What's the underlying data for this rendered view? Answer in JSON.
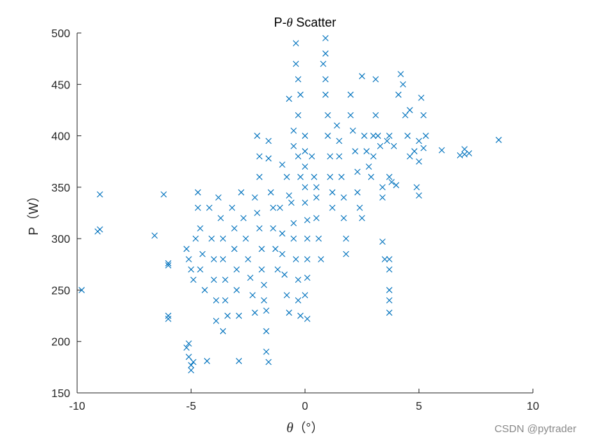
{
  "chart_data": {
    "type": "scatter",
    "title_prefix": "P-",
    "title_symbol": "θ",
    "title_suffix": " Scatter",
    "xlabel_symbol": "θ",
    "xlabel_unit": "（°）",
    "ylabel": "P（W）",
    "xlim": [
      -10,
      10
    ],
    "ylim": [
      150,
      500
    ],
    "xticks": [
      "-10",
      "-5",
      "0",
      "5",
      "10"
    ],
    "yticks": [
      "150",
      "200",
      "250",
      "300",
      "350",
      "400",
      "450",
      "500"
    ],
    "grid": false,
    "marker": "x",
    "series_color": "#0072BD",
    "points": [
      [
        -9.8,
        250
      ],
      [
        -9.0,
        343
      ],
      [
        -9.0,
        309
      ],
      [
        -9.1,
        307
      ],
      [
        -6.6,
        303
      ],
      [
        -6.2,
        343
      ],
      [
        -6.0,
        276
      ],
      [
        -6.0,
        274
      ],
      [
        -6.0,
        225
      ],
      [
        -6.0,
        222
      ],
      [
        -5.2,
        194
      ],
      [
        -5.1,
        185
      ],
      [
        -5.0,
        177
      ],
      [
        -5.0,
        172
      ],
      [
        -5.1,
        198
      ],
      [
        -4.9,
        180
      ],
      [
        -5.2,
        290
      ],
      [
        -5.1,
        280
      ],
      [
        -5.0,
        270
      ],
      [
        -4.9,
        260
      ],
      [
        -4.8,
        300
      ],
      [
        -4.7,
        345
      ],
      [
        -4.7,
        330
      ],
      [
        -4.6,
        310
      ],
      [
        -4.5,
        285
      ],
      [
        -4.6,
        270
      ],
      [
        -4.4,
        250
      ],
      [
        -4.3,
        181
      ],
      [
        -4.2,
        330
      ],
      [
        -4.1,
        300
      ],
      [
        -4.0,
        280
      ],
      [
        -4.0,
        260
      ],
      [
        -3.9,
        240
      ],
      [
        -3.9,
        220
      ],
      [
        -3.8,
        340
      ],
      [
        -3.7,
        320
      ],
      [
        -3.6,
        300
      ],
      [
        -3.6,
        280
      ],
      [
        -3.5,
        260
      ],
      [
        -3.5,
        240
      ],
      [
        -3.4,
        225
      ],
      [
        -3.6,
        210
      ],
      [
        -3.2,
        330
      ],
      [
        -3.1,
        310
      ],
      [
        -3.1,
        290
      ],
      [
        -3.0,
        270
      ],
      [
        -3.0,
        250
      ],
      [
        -2.9,
        225
      ],
      [
        -2.9,
        181
      ],
      [
        -2.8,
        345
      ],
      [
        -2.7,
        320
      ],
      [
        -2.6,
        300
      ],
      [
        -2.5,
        280
      ],
      [
        -2.4,
        262
      ],
      [
        -2.3,
        245
      ],
      [
        -2.2,
        228
      ],
      [
        -2.2,
        340
      ],
      [
        -2.1,
        325
      ],
      [
        -2.0,
        310
      ],
      [
        -1.9,
        290
      ],
      [
        -1.9,
        270
      ],
      [
        -1.8,
        255
      ],
      [
        -1.8,
        240
      ],
      [
        -1.7,
        230
      ],
      [
        -1.7,
        210
      ],
      [
        -1.7,
        190
      ],
      [
        -1.6,
        180
      ],
      [
        -2.1,
        400
      ],
      [
        -2.0,
        380
      ],
      [
        -2.0,
        360
      ],
      [
        -1.6,
        395
      ],
      [
        -1.6,
        378
      ],
      [
        -1.5,
        345
      ],
      [
        -1.4,
        330
      ],
      [
        -1.4,
        310
      ],
      [
        -1.3,
        290
      ],
      [
        -1.2,
        270
      ],
      [
        -1.1,
        330
      ],
      [
        -1.0,
        305
      ],
      [
        -1.0,
        285
      ],
      [
        -0.9,
        265
      ],
      [
        -0.8,
        245
      ],
      [
        -0.7,
        228
      ],
      [
        -0.7,
        342
      ],
      [
        -0.6,
        335
      ],
      [
        -0.5,
        315
      ],
      [
        -0.5,
        300
      ],
      [
        -0.4,
        280
      ],
      [
        -0.3,
        260
      ],
      [
        -0.3,
        240
      ],
      [
        -0.2,
        225
      ],
      [
        -1.0,
        372
      ],
      [
        -0.8,
        360
      ],
      [
        -0.5,
        405
      ],
      [
        -0.5,
        390
      ],
      [
        -0.7,
        436
      ],
      [
        -0.3,
        420
      ],
      [
        -0.4,
        490
      ],
      [
        -0.4,
        470
      ],
      [
        -0.3,
        455
      ],
      [
        -0.2,
        440
      ],
      [
        -0.3,
        380
      ],
      [
        -0.2,
        360
      ],
      [
        0.0,
        400
      ],
      [
        0.0,
        385
      ],
      [
        0.0,
        370
      ],
      [
        0.0,
        350
      ],
      [
        0.0,
        335
      ],
      [
        0.1,
        318
      ],
      [
        0.1,
        300
      ],
      [
        0.1,
        280
      ],
      [
        0.1,
        262
      ],
      [
        0.0,
        245
      ],
      [
        0.1,
        222
      ],
      [
        0.3,
        380
      ],
      [
        0.4,
        360
      ],
      [
        0.5,
        340
      ],
      [
        0.5,
        320
      ],
      [
        0.6,
        300
      ],
      [
        0.7,
        280
      ],
      [
        0.5,
        350
      ],
      [
        0.8,
        470
      ],
      [
        0.9,
        455
      ],
      [
        0.9,
        440
      ],
      [
        1.0,
        420
      ],
      [
        1.0,
        400
      ],
      [
        1.1,
        380
      ],
      [
        1.1,
        360
      ],
      [
        1.2,
        345
      ],
      [
        0.9,
        495
      ],
      [
        0.9,
        480
      ],
      [
        1.2,
        330
      ],
      [
        1.4,
        410
      ],
      [
        1.5,
        395
      ],
      [
        1.5,
        380
      ],
      [
        1.6,
        360
      ],
      [
        1.7,
        340
      ],
      [
        1.7,
        320
      ],
      [
        1.8,
        300
      ],
      [
        1.8,
        285
      ],
      [
        2.0,
        420
      ],
      [
        2.1,
        405
      ],
      [
        2.2,
        385
      ],
      [
        2.3,
        365
      ],
      [
        2.3,
        345
      ],
      [
        2.4,
        330
      ],
      [
        2.5,
        320
      ],
      [
        2.0,
        440
      ],
      [
        2.5,
        458
      ],
      [
        2.6,
        400
      ],
      [
        2.7,
        385
      ],
      [
        2.8,
        370
      ],
      [
        2.9,
        360
      ],
      [
        3.0,
        380
      ],
      [
        3.0,
        400
      ],
      [
        3.1,
        420
      ],
      [
        3.1,
        455
      ],
      [
        3.2,
        400
      ],
      [
        3.3,
        390
      ],
      [
        3.4,
        350
      ],
      [
        3.4,
        340
      ],
      [
        3.4,
        297
      ],
      [
        3.5,
        280
      ],
      [
        3.6,
        395
      ],
      [
        3.7,
        400
      ],
      [
        3.7,
        360
      ],
      [
        3.8,
        355
      ],
      [
        3.7,
        280
      ],
      [
        3.7,
        270
      ],
      [
        3.7,
        250
      ],
      [
        3.7,
        240
      ],
      [
        3.7,
        228
      ],
      [
        3.9,
        390
      ],
      [
        4.0,
        352
      ],
      [
        4.1,
        440
      ],
      [
        4.2,
        460
      ],
      [
        4.3,
        450
      ],
      [
        4.4,
        420
      ],
      [
        4.5,
        400
      ],
      [
        4.6,
        380
      ],
      [
        4.8,
        385
      ],
      [
        4.6,
        425
      ],
      [
        4.9,
        350
      ],
      [
        5.0,
        342
      ],
      [
        5.2,
        420
      ],
      [
        5.3,
        400
      ],
      [
        5.2,
        388
      ],
      [
        5.1,
        437
      ],
      [
        5.0,
        395
      ],
      [
        5.0,
        375
      ],
      [
        6.0,
        386
      ],
      [
        6.8,
        381
      ],
      [
        7.0,
        387
      ],
      [
        7.0,
        382
      ],
      [
        7.2,
        383
      ],
      [
        8.5,
        396
      ]
    ]
  },
  "watermark": "CSDN @pytrader"
}
